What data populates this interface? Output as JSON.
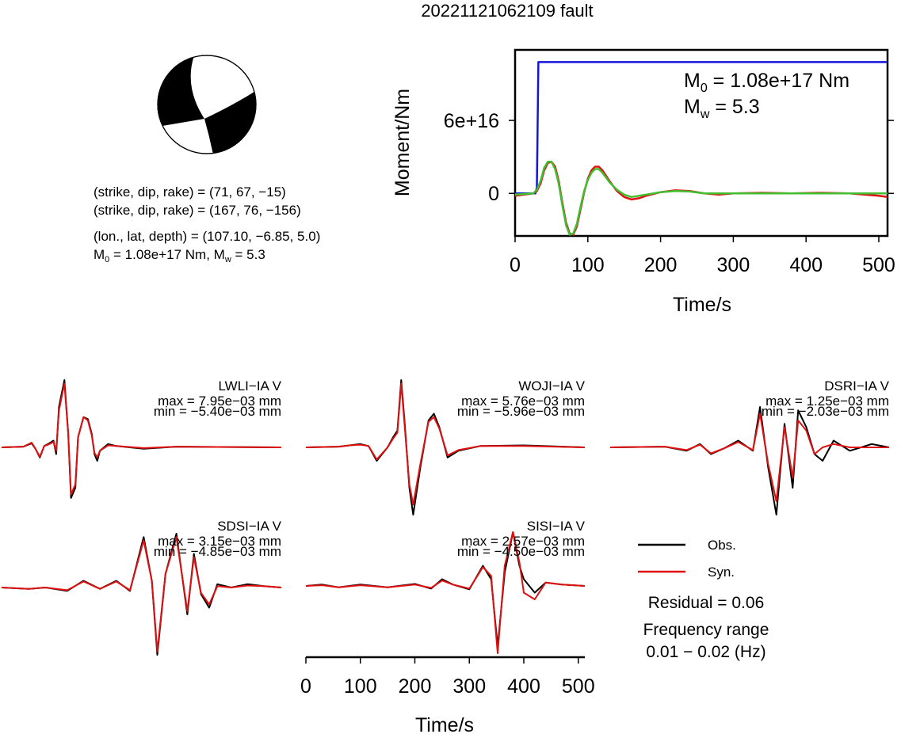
{
  "title": "20221121062109 fault",
  "colors": {
    "moment": "#1515d8",
    "obs": "#000000",
    "syn": "#e01010",
    "syn_src": "#40c030"
  },
  "mechanism": {
    "line1": "(strike, dip, rake) = (71, 67, −15)",
    "line2": "(strike, dip, rake) = (167, 76, −156)",
    "line3": "(lon., lat, depth) = (107.10, −6.85, 5.0)",
    "line4_m": "M",
    "line4_sub": "0",
    "line4_rest": " = 1.08e+17 Nm, M",
    "line4_sub2": "w",
    "line4_end": " = 5.3"
  },
  "chart_data": [
    {
      "type": "line",
      "name": "moment-rate",
      "ylabel": "Moment/Nm",
      "xlabel": "Time/s",
      "xlim": [
        0,
        512
      ],
      "ylim": [
        -3.5e+16,
        1.18e+17
      ],
      "xticks": [
        0,
        100,
        200,
        300,
        400,
        500
      ],
      "xtick_labels": [
        "0",
        "100",
        "200",
        "300",
        "400",
        "500"
      ],
      "yticks": [
        0,
        6e+16
      ],
      "ytick_labels": [
        "0",
        "6e+16"
      ],
      "annotation": {
        "m0_prefix": "M",
        "m0_sub": "0",
        "m0_value": " = 1.08e+17 Nm",
        "mw_prefix": "M",
        "mw_sub": "w",
        "mw_value": " = 5.3"
      },
      "series": [
        {
          "x": [
            0,
            28,
            30,
            32,
            512
          ],
          "y": [
            0,
            0,
            5000000000000000.0,
            1.08e+17,
            1.08e+17
          ]
        },
        {
          "x": [
            0,
            25,
            30,
            35,
            40,
            45,
            50,
            55,
            60,
            65,
            70,
            75,
            80,
            85,
            90,
            95,
            100,
            105,
            110,
            115,
            120,
            130,
            140,
            150,
            160,
            170,
            180,
            200,
            220,
            240,
            260,
            280,
            300,
            340,
            380,
            420,
            460,
            500,
            512
          ],
          "y": [
            -2000000000000000.0,
            0,
            2000000000000000.0,
            8000000000000000.0,
            1.9e+16,
            2.5e+16,
            2.6e+16,
            2.2e+16,
            1e+16,
            -8000000000000000.0,
            -2.4e+16,
            -3.3e+16,
            -3.4e+16,
            -2.7e+16,
            -1.3e+16,
            1000000000000000.0,
            1.2e+16,
            1.9e+16,
            2.2e+16,
            2.2e+16,
            1.9e+16,
            1e+16,
            2000000000000000.0,
            -3000000000000000.0,
            -5000000000000000.0,
            -4000000000000000.0,
            -2000000000000000.0,
            1000000000000000.0,
            2500000000000000.0,
            2000000000000000.0,
            0,
            -1000000000000000.0,
            0,
            500000000000000.0,
            0,
            500000000000000.0,
            0,
            -2000000000000000.0,
            -3000000000000000.0
          ]
        },
        {
          "x": [
            0,
            25,
            30,
            35,
            40,
            45,
            50,
            55,
            60,
            65,
            70,
            75,
            80,
            85,
            90,
            95,
            100,
            105,
            110,
            115,
            120,
            130,
            140,
            150,
            160,
            170,
            180,
            200,
            220,
            240,
            260,
            280,
            300,
            340,
            380,
            420,
            460,
            500,
            512
          ],
          "y": [
            -1000000000000000.0,
            0,
            3000000000000000.0,
            1e+16,
            2.1e+16,
            2.6e+16,
            2.6e+16,
            2e+16,
            8000000000000000.0,
            -1e+16,
            -2.6e+16,
            -3.4e+16,
            -3.3e+16,
            -2.5e+16,
            -1.1e+16,
            2000000000000000.0,
            1.1e+16,
            1.7e+16,
            2e+16,
            2e+16,
            1.7e+16,
            9000000000000000.0,
            3000000000000000.0,
            -1000000000000000.0,
            -3000000000000000.0,
            -2000000000000000.0,
            -1000000000000000.0,
            1000000000000000.0,
            2000000000000000.0,
            1500000000000000.0,
            0,
            0,
            0,
            0,
            0,
            0,
            0,
            0,
            0
          ]
        }
      ]
    },
    {
      "type": "line",
      "name": "waveforms",
      "xlabel": "Time/s",
      "xlim": [
        0,
        512
      ],
      "xticks": [
        0,
        100,
        200,
        300,
        400,
        500
      ],
      "xtick_labels": [
        "0",
        "100",
        "200",
        "300",
        "400",
        "500"
      ],
      "legend": {
        "obs": "Obs.",
        "syn": "Syn."
      },
      "residual": "Residual = 0.06",
      "freq_label": "Frequency range",
      "freq_value": "0.01 − 0.02 (Hz)",
      "stations": [
        {
          "name": "LWLI−IA V",
          "max": "max = 7.95e−03 mm",
          "min": "min = −5.40e−03 mm",
          "x": [
            0,
            40,
            55,
            62,
            70,
            78,
            85,
            95,
            100,
            105,
            115,
            122,
            127,
            135,
            140,
            150,
            158,
            165,
            170,
            175,
            180,
            195,
            210,
            260,
            320,
            512
          ],
          "obs": [
            0,
            0.01,
            0.06,
            -0.02,
            -0.15,
            0.02,
            0.05,
            0.1,
            -0.1,
            0.6,
            1.0,
            0.2,
            -0.75,
            -0.6,
            0.15,
            0.45,
            0.42,
            0.2,
            -0.1,
            -0.2,
            -0.05,
            0.05,
            0.02,
            -0.02,
            0.01,
            0.0
          ],
          "syn": [
            0,
            0.01,
            0.07,
            -0.02,
            -0.14,
            0.02,
            0.04,
            0.08,
            -0.05,
            0.55,
            0.95,
            0.2,
            -0.7,
            -0.55,
            0.15,
            0.45,
            0.4,
            0.18,
            -0.08,
            -0.15,
            -0.05,
            0.03,
            0.02,
            -0.01,
            0.01,
            0.0
          ]
        },
        {
          "name": "WOJI−IA V",
          "max": "max = 5.76e−03 mm",
          "min": "min = −5.96e−03 mm",
          "x": [
            0,
            60,
            80,
            100,
            115,
            130,
            150,
            160,
            168,
            175,
            182,
            190,
            197,
            210,
            225,
            235,
            245,
            260,
            280,
            320,
            400,
            512
          ],
          "obs": [
            0,
            0.01,
            0.03,
            0.05,
            0.02,
            -0.2,
            0.0,
            0.15,
            0.25,
            1.0,
            0.3,
            -0.6,
            -1.0,
            -0.3,
            0.4,
            0.5,
            0.3,
            -0.15,
            -0.05,
            0.02,
            0.03,
            0.0
          ],
          "syn": [
            0,
            0.01,
            0.03,
            0.04,
            0.02,
            -0.18,
            0.0,
            0.13,
            0.22,
            0.95,
            0.25,
            -0.55,
            -0.85,
            -0.25,
            0.38,
            0.45,
            0.28,
            -0.12,
            -0.04,
            0.02,
            0.02,
            0.0
          ]
        },
        {
          "name": "DSRI−IA V",
          "max": "max = 1.25e−03 mm",
          "min": "min = −2.03e−03 mm",
          "x": [
            0,
            100,
            140,
            165,
            185,
            210,
            235,
            262,
            275,
            290,
            305,
            320,
            335,
            345,
            360,
            375,
            390,
            410,
            440,
            480,
            512
          ],
          "obs": [
            0,
            0.01,
            -0.05,
            0.05,
            -0.1,
            -0.01,
            0.1,
            -0.05,
            0.6,
            -0.3,
            -1.0,
            0.35,
            -0.6,
            0.55,
            0.3,
            -0.1,
            -0.2,
            0.1,
            -0.05,
            0.05,
            0.0
          ],
          "syn": [
            0,
            0.01,
            -0.04,
            0.04,
            -0.09,
            -0.01,
            0.08,
            -0.04,
            0.5,
            -0.25,
            -0.8,
            0.3,
            -0.45,
            0.4,
            0.25,
            -0.1,
            0.0,
            0.05,
            0.0,
            0.0,
            0.0
          ]
        },
        {
          "name": "SDSI−IA V",
          "max": "max = 3.15e−03 mm",
          "min": "min = −4.85e−03 mm",
          "x": [
            0,
            50,
            80,
            120,
            150,
            180,
            210,
            235,
            260,
            275,
            285,
            300,
            320,
            340,
            352,
            365,
            380,
            395,
            420,
            450,
            480,
            512
          ],
          "obs": [
            0,
            -0.02,
            0.0,
            -0.05,
            0.1,
            -0.02,
            0.1,
            -0.05,
            0.75,
            0.1,
            -1.0,
            0.2,
            0.8,
            -0.4,
            0.5,
            -0.1,
            -0.3,
            0.05,
            0.0,
            0.05,
            0.02,
            0.0
          ],
          "syn": [
            0,
            -0.02,
            0.0,
            -0.04,
            0.09,
            -0.02,
            0.09,
            -0.04,
            0.7,
            0.1,
            -0.95,
            0.2,
            0.75,
            -0.35,
            0.45,
            -0.08,
            -0.25,
            0.02,
            0.0,
            0.03,
            0.02,
            0.0
          ]
        },
        {
          "name": "SISI−IA V",
          "max": "max = 2.57e−03 mm",
          "min": "min = −4.50e−03 mm",
          "x": [
            0,
            30,
            60,
            100,
            150,
            200,
            230,
            250,
            270,
            300,
            325,
            340,
            352,
            365,
            380,
            392,
            400,
            420,
            440,
            470,
            512
          ],
          "obs": [
            0,
            0.02,
            -0.02,
            0.02,
            -0.02,
            0.03,
            -0.04,
            0.1,
            0.02,
            -0.05,
            0.3,
            0.1,
            -0.9,
            0.2,
            0.8,
            0.3,
            0.1,
            -0.1,
            0.05,
            0.02,
            0.0
          ],
          "syn": [
            0,
            0.01,
            -0.02,
            0.01,
            -0.02,
            0.02,
            -0.03,
            0.08,
            0.02,
            -0.04,
            0.28,
            0.15,
            -1.0,
            0.3,
            0.8,
            0.35,
            -0.1,
            -0.2,
            0.05,
            0.02,
            0.0
          ]
        }
      ]
    }
  ]
}
